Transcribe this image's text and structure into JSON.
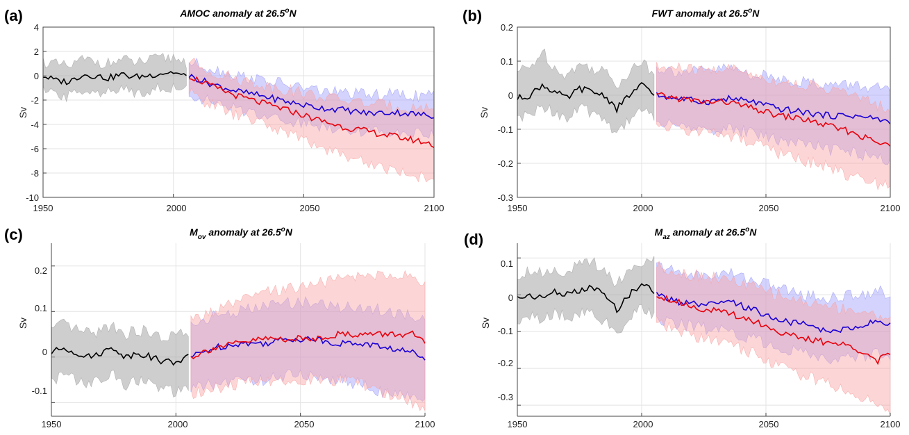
{
  "chart_data": [
    {
      "type": "line",
      "panel_label": "(a)",
      "title": "AMOC anomaly at 26.5°N",
      "title_parts": {
        "main": "AMOC anomaly at 26.5",
        "sup": "o",
        "after": "N"
      },
      "ylabel": "Sv",
      "xlim": [
        1950,
        2100
      ],
      "ylim": [
        -10,
        4
      ],
      "xticks": [
        "1950",
        "2000",
        "2050",
        "2100"
      ],
      "yticks": [
        "4",
        "2",
        "0",
        "-2",
        "-4",
        "-6",
        "-8",
        "-10"
      ],
      "grid": true,
      "series": [
        {
          "color": "#000000",
          "band_color": "#a6a6a6",
          "x": [
            1950,
            1955,
            1960,
            1965,
            1970,
            1975,
            1980,
            1985,
            1990,
            1995,
            2000,
            2005
          ],
          "values": [
            0.0,
            -0.4,
            -0.5,
            0.1,
            0.0,
            -0.2,
            0.1,
            -0.1,
            0.0,
            0.2,
            0.3,
            -0.1
          ],
          "lower": [
            -1.3,
            -1.6,
            -1.7,
            -1.1,
            -1.2,
            -1.4,
            -1.2,
            -1.3,
            -1.2,
            -1.0,
            -0.9,
            -1.3
          ],
          "upper": [
            1.2,
            0.9,
            0.7,
            1.3,
            1.2,
            1.0,
            1.3,
            1.1,
            1.2,
            1.4,
            1.5,
            1.1
          ]
        },
        {
          "color": "#1a00d4",
          "band_color": "#9d9dfa",
          "x": [
            2006,
            2015,
            2025,
            2035,
            2045,
            2055,
            2065,
            2075,
            2085,
            2095,
            2100
          ],
          "values": [
            0.0,
            -0.7,
            -1.3,
            -1.7,
            -2.2,
            -2.6,
            -2.8,
            -3.1,
            -3.0,
            -3.2,
            -3.3
          ],
          "lower": [
            -1.5,
            -2.2,
            -2.8,
            -3.2,
            -3.7,
            -4.1,
            -4.3,
            -4.6,
            -4.5,
            -4.7,
            -4.8
          ],
          "upper": [
            1.1,
            0.6,
            0.0,
            -0.4,
            -0.8,
            -1.2,
            -1.4,
            -1.6,
            -1.5,
            -1.7,
            -1.5
          ]
        },
        {
          "color": "#e8000b",
          "band_color": "#f9a3a3",
          "x": [
            2006,
            2015,
            2025,
            2035,
            2045,
            2055,
            2065,
            2075,
            2085,
            2095,
            2100
          ],
          "values": [
            0.0,
            -0.9,
            -1.7,
            -2.3,
            -2.9,
            -3.6,
            -4.2,
            -4.6,
            -5.0,
            -5.4,
            -5.7
          ],
          "lower": [
            -1.4,
            -2.4,
            -3.3,
            -4.0,
            -4.8,
            -5.7,
            -6.5,
            -7.2,
            -7.8,
            -8.3,
            -8.5
          ],
          "upper": [
            1.2,
            0.3,
            -0.3,
            -0.8,
            -1.2,
            -1.7,
            -2.0,
            -2.3,
            -2.5,
            -2.7,
            -2.6
          ]
        }
      ]
    },
    {
      "type": "line",
      "panel_label": "(b)",
      "title": "FWT anomaly at 26.5°N",
      "title_parts": {
        "main": "FWT anomaly at 26.5",
        "sup": "o",
        "after": "N"
      },
      "ylabel": "Sv",
      "xlim": [
        1950,
        2100
      ],
      "ylim": [
        -0.3,
        0.2
      ],
      "xticks": [
        "1950",
        "2000",
        "2050",
        "2100"
      ],
      "yticks": [
        "0.2",
        "0.1",
        "0",
        "-0.1",
        "-0.2",
        "-0.3"
      ],
      "grid": true,
      "series": [
        {
          "color": "#000000",
          "band_color": "#a6a6a6",
          "x": [
            1950,
            1955,
            1960,
            1965,
            1970,
            1975,
            1980,
            1985,
            1990,
            1995,
            2000,
            2005
          ],
          "values": [
            -0.01,
            0.0,
            0.03,
            0.01,
            -0.01,
            0.02,
            0.01,
            0.0,
            -0.04,
            0.0,
            0.03,
            0.0
          ],
          "lower": [
            -0.07,
            -0.06,
            -0.03,
            -0.05,
            -0.07,
            -0.04,
            -0.05,
            -0.07,
            -0.11,
            -0.07,
            -0.04,
            -0.06
          ],
          "upper": [
            0.07,
            0.08,
            0.13,
            0.08,
            0.06,
            0.09,
            0.08,
            0.07,
            0.03,
            0.07,
            0.1,
            0.06
          ]
        },
        {
          "color": "#1a00d4",
          "band_color": "#9d9dfa",
          "x": [
            2006,
            2015,
            2025,
            2035,
            2045,
            2055,
            2065,
            2075,
            2085,
            2095,
            2100
          ],
          "values": [
            0.0,
            -0.01,
            -0.02,
            -0.01,
            -0.02,
            -0.04,
            -0.05,
            -0.06,
            -0.06,
            -0.07,
            -0.08
          ],
          "lower": [
            -0.08,
            -0.09,
            -0.1,
            -0.1,
            -0.11,
            -0.13,
            -0.14,
            -0.16,
            -0.17,
            -0.18,
            -0.19
          ],
          "upper": [
            0.08,
            0.07,
            0.07,
            0.08,
            0.06,
            0.05,
            0.04,
            0.03,
            0.03,
            0.02,
            0.01
          ]
        },
        {
          "color": "#e8000b",
          "band_color": "#f9a3a3",
          "x": [
            2006,
            2015,
            2025,
            2035,
            2045,
            2055,
            2065,
            2075,
            2085,
            2095,
            2100
          ],
          "values": [
            0.0,
            -0.01,
            -0.02,
            -0.02,
            -0.04,
            -0.06,
            -0.07,
            -0.09,
            -0.11,
            -0.14,
            -0.15
          ],
          "lower": [
            -0.09,
            -0.1,
            -0.11,
            -0.12,
            -0.14,
            -0.17,
            -0.19,
            -0.21,
            -0.24,
            -0.26,
            -0.26
          ],
          "upper": [
            0.08,
            0.08,
            0.07,
            0.08,
            0.06,
            0.04,
            0.03,
            0.02,
            0.0,
            -0.03,
            -0.04
          ]
        }
      ]
    },
    {
      "type": "line",
      "panel_label": "(c)",
      "title": "Mov anomaly at 26.5°N",
      "title_parts": {
        "main": "M",
        "sub": "ov",
        "rest": " anomaly at 26.5",
        "sup": "o",
        "after": "N"
      },
      "ylabel": "Sv",
      "xlim": [
        1950,
        2100
      ],
      "ylim": [
        -0.13,
        0.25
      ],
      "xticks": [
        "1950",
        "2000",
        "2050",
        "2100"
      ],
      "yticks": [
        "0.2",
        "0.1",
        "0",
        "-0.1"
      ],
      "grid": true,
      "series": [
        {
          "color": "#000000",
          "band_color": "#a6a6a6",
          "x": [
            1950,
            1955,
            1960,
            1965,
            1970,
            1975,
            1980,
            1985,
            1990,
            1995,
            2000,
            2005
          ],
          "values": [
            0.01,
            0.02,
            0.01,
            0.0,
            0.01,
            0.02,
            0.0,
            0.01,
            0.0,
            -0.01,
            -0.01,
            0.0
          ],
          "lower": [
            -0.05,
            -0.04,
            -0.05,
            -0.06,
            -0.05,
            -0.04,
            -0.06,
            -0.05,
            -0.06,
            -0.07,
            -0.08,
            -0.07
          ],
          "upper": [
            0.06,
            0.07,
            0.06,
            0.05,
            0.06,
            0.07,
            0.05,
            0.06,
            0.05,
            0.04,
            0.05,
            0.05
          ]
        },
        {
          "color": "#1a00d4",
          "band_color": "#9d9dfa",
          "x": [
            2006,
            2015,
            2025,
            2035,
            2045,
            2055,
            2065,
            2075,
            2085,
            2095,
            2100
          ],
          "values": [
            0.0,
            0.02,
            0.03,
            0.03,
            0.04,
            0.04,
            0.03,
            0.03,
            0.02,
            0.01,
            0.0
          ],
          "lower": [
            -0.07,
            -0.06,
            -0.05,
            -0.05,
            -0.04,
            -0.04,
            -0.05,
            -0.06,
            -0.08,
            -0.09,
            -0.1
          ],
          "upper": [
            0.07,
            0.09,
            0.1,
            0.11,
            0.12,
            0.12,
            0.11,
            0.11,
            0.1,
            0.09,
            0.08
          ]
        },
        {
          "color": "#e8000b",
          "band_color": "#f9a3a3",
          "x": [
            2006,
            2015,
            2025,
            2035,
            2045,
            2055,
            2065,
            2075,
            2085,
            2095,
            2100
          ],
          "values": [
            0.0,
            0.02,
            0.03,
            0.04,
            0.04,
            0.04,
            0.05,
            0.05,
            0.05,
            0.05,
            0.03
          ],
          "lower": [
            -0.08,
            -0.07,
            -0.06,
            -0.05,
            -0.05,
            -0.05,
            -0.05,
            -0.06,
            -0.08,
            -0.1,
            -0.11
          ],
          "upper": [
            0.08,
            0.1,
            0.12,
            0.14,
            0.15,
            0.16,
            0.17,
            0.18,
            0.18,
            0.18,
            0.16
          ]
        }
      ]
    },
    {
      "type": "line",
      "panel_label": "(d)",
      "title": "Maz anomaly at 26.5°N",
      "title_parts": {
        "main": "M",
        "sub": "az",
        "rest": " anomaly at 26.5",
        "sup": "o",
        "after": "N"
      },
      "ylabel": "Sv",
      "xlim": [
        1950,
        2100
      ],
      "ylim": [
        -0.33,
        0.14
      ],
      "xticks": [
        "1950",
        "2000",
        "2050",
        "2100"
      ],
      "yticks": [
        "0.1",
        "0",
        "-0.1",
        "-0.2",
        "-0.3"
      ],
      "grid": true,
      "series": [
        {
          "color": "#000000",
          "band_color": "#a6a6a6",
          "x": [
            1950,
            1955,
            1960,
            1965,
            1970,
            1975,
            1980,
            1985,
            1990,
            1995,
            2000,
            2005
          ],
          "values": [
            -0.01,
            0.0,
            -0.01,
            0.01,
            0.0,
            0.01,
            0.02,
            0.0,
            -0.04,
            0.0,
            0.03,
            0.01
          ],
          "lower": [
            -0.07,
            -0.06,
            -0.07,
            -0.05,
            -0.06,
            -0.05,
            -0.05,
            -0.07,
            -0.12,
            -0.07,
            -0.03,
            -0.06
          ],
          "upper": [
            0.05,
            0.07,
            0.06,
            0.07,
            0.06,
            0.08,
            0.09,
            0.07,
            0.03,
            0.07,
            0.09,
            0.09
          ]
        },
        {
          "color": "#1a00d4",
          "band_color": "#9d9dfa",
          "x": [
            2006,
            2015,
            2025,
            2035,
            2045,
            2055,
            2065,
            2075,
            2085,
            2095,
            2100
          ],
          "values": [
            0.0,
            -0.02,
            -0.03,
            -0.02,
            -0.04,
            -0.07,
            -0.08,
            -0.1,
            -0.09,
            -0.07,
            -0.08
          ],
          "lower": [
            -0.07,
            -0.08,
            -0.09,
            -0.1,
            -0.12,
            -0.14,
            -0.16,
            -0.18,
            -0.17,
            -0.16,
            -0.17
          ],
          "upper": [
            0.08,
            0.06,
            0.05,
            0.06,
            0.04,
            0.02,
            0.0,
            -0.01,
            0.0,
            0.01,
            0.0
          ]
        },
        {
          "color": "#e8000b",
          "band_color": "#f9a3a3",
          "x": [
            2006,
            2015,
            2025,
            2035,
            2045,
            2055,
            2065,
            2075,
            2085,
            2095,
            2100
          ],
          "values": [
            0.0,
            -0.02,
            -0.04,
            -0.05,
            -0.07,
            -0.1,
            -0.12,
            -0.13,
            -0.14,
            -0.18,
            -0.16
          ],
          "lower": [
            -0.08,
            -0.1,
            -0.12,
            -0.13,
            -0.16,
            -0.19,
            -0.22,
            -0.24,
            -0.27,
            -0.3,
            -0.31
          ],
          "upper": [
            0.08,
            0.06,
            0.05,
            0.04,
            0.02,
            0.0,
            -0.02,
            -0.03,
            -0.04,
            -0.06,
            -0.05
          ]
        }
      ]
    }
  ]
}
